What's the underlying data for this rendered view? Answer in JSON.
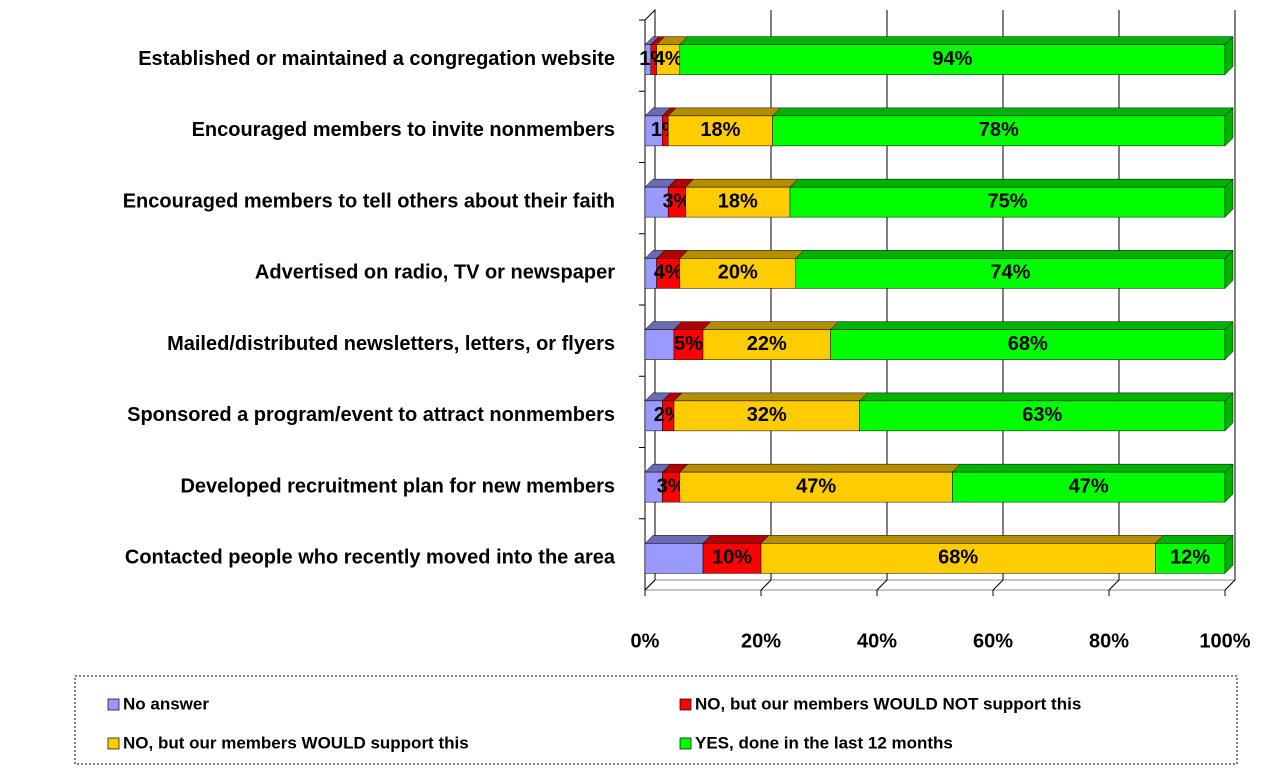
{
  "chart_data": {
    "type": "stacked_bar_horizontal",
    "categories": [
      "Established or maintained a congregation website",
      "Encouraged members to invite nonmembers",
      "Encouraged members to tell others about their faith",
      "Advertised on radio, TV or  newspaper",
      "Mailed/distributed newsletters, letters, or flyers",
      "Sponsored a program/event to attract nonmembers",
      "Developed recruitment plan for new members",
      "Contacted people who recently moved into the area"
    ],
    "series": [
      {
        "name": "No answer",
        "color": "#9999ff",
        "values": [
          1,
          3,
          4,
          2,
          5,
          3,
          3,
          10
        ]
      },
      {
        "name": "NO, but our members WOULD NOT support this",
        "color": "#ff0000",
        "values": [
          1,
          1,
          3,
          4,
          5,
          2,
          3,
          10
        ],
        "value_labels": [
          "1%",
          "1%",
          "3%",
          "4%",
          "5%",
          "2%",
          "3%",
          "10%"
        ]
      },
      {
        "name": "NO, but our members WOULD support this",
        "color": "#ffcc00",
        "values": [
          4,
          18,
          18,
          20,
          22,
          32,
          47,
          68
        ],
        "value_labels": [
          "4%",
          "18%",
          "18%",
          "20%",
          "22%",
          "32%",
          "47%",
          "68%"
        ]
      },
      {
        "name": "YES, done in the last 12 months",
        "color": "#00ff00",
        "values": [
          94,
          78,
          75,
          74,
          68,
          63,
          47,
          12
        ],
        "value_labels": [
          "94%",
          "78%",
          "75%",
          "74%",
          "68%",
          "63%",
          "47%",
          "12%"
        ]
      }
    ],
    "xlim": [
      0,
      100
    ],
    "xticks": [
      {
        "value": 0,
        "label": "0%"
      },
      {
        "value": 20,
        "label": "20%"
      },
      {
        "value": 40,
        "label": "40%"
      },
      {
        "value": 60,
        "label": "60%"
      },
      {
        "value": 80,
        "label": "80%"
      },
      {
        "value": 100,
        "label": "100%"
      }
    ],
    "grid": true
  }
}
